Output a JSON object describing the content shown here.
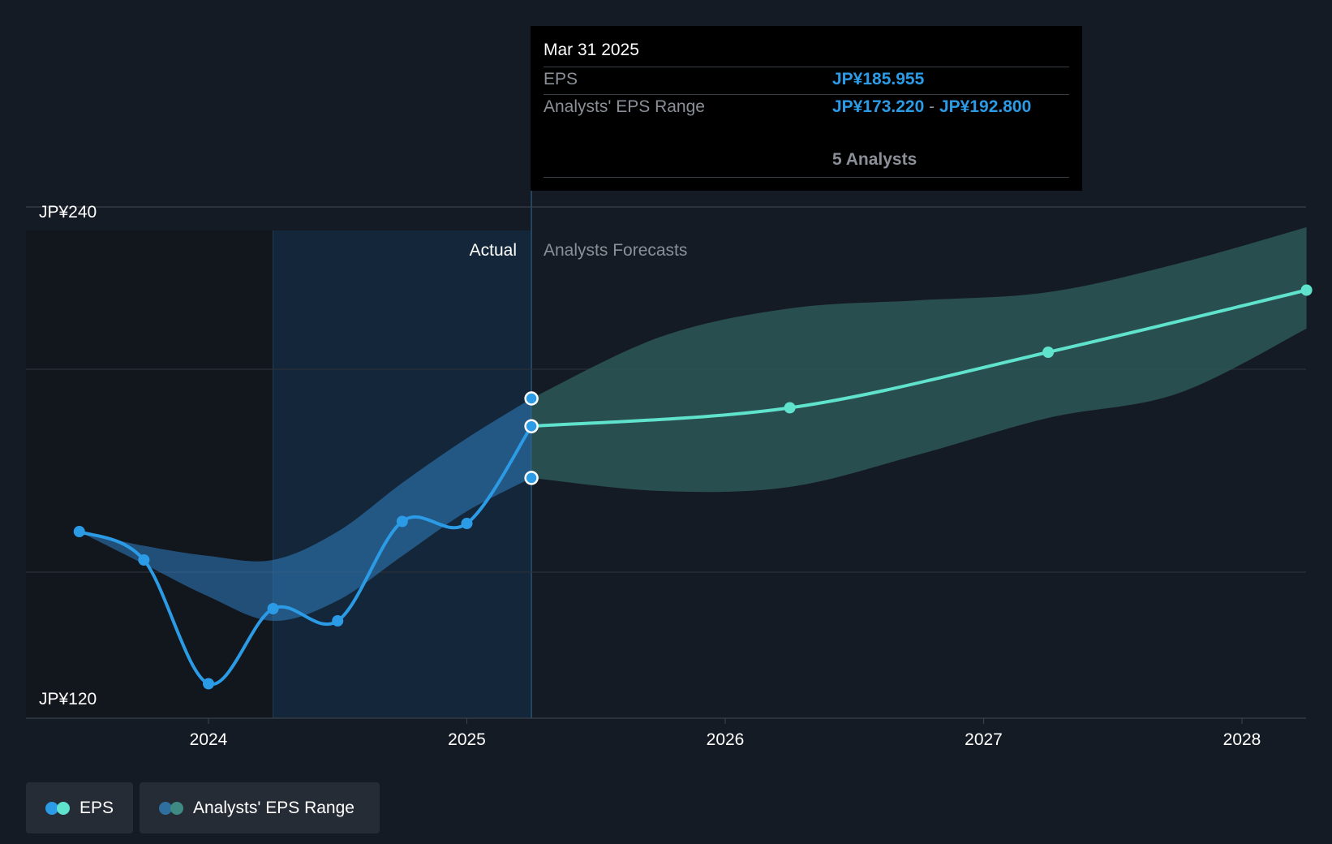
{
  "chart_data": {
    "type": "line",
    "y_axis": {
      "min_label": "JP¥120",
      "max_label": "JP¥240",
      "ylim": [
        114,
        240
      ],
      "unit_prefix": "JP¥"
    },
    "x_axis": {
      "ticks": [
        "2024",
        "2025",
        "2026",
        "2027",
        "2028"
      ],
      "xlim": [
        2023.33,
        2028.25
      ]
    },
    "grid": true,
    "regions": {
      "actual_label": "Actual",
      "forecast_label": "Analysts Forecasts",
      "split_x": 2025.25
    },
    "series": [
      {
        "name": "EPS",
        "color": "#2b9be6",
        "points": [
          {
            "x": 2023.5,
            "y": 160.0
          },
          {
            "x": 2023.75,
            "y": 153.0
          },
          {
            "x": 2024.0,
            "y": 122.5
          },
          {
            "x": 2024.25,
            "y": 141.0
          },
          {
            "x": 2024.5,
            "y": 138.0
          },
          {
            "x": 2024.75,
            "y": 162.5
          },
          {
            "x": 2025.0,
            "y": 162.0
          },
          {
            "x": 2025.25,
            "y": 185.955
          }
        ]
      },
      {
        "name": "EPS forecast",
        "color": "#5fe3cc",
        "points": [
          {
            "x": 2025.25,
            "y": 185.955
          },
          {
            "x": 2026.25,
            "y": 190.5
          },
          {
            "x": 2027.25,
            "y": 204.2
          },
          {
            "x": 2028.25,
            "y": 219.5
          }
        ]
      }
    ],
    "ranges": [
      {
        "name": "Analysts' EPS Range (historical)",
        "color": "#2f7fc1",
        "x": [
          2023.5,
          2023.75,
          2024.0,
          2024.25,
          2024.5,
          2024.75,
          2025.0,
          2025.25
        ],
        "high": [
          160.0,
          156.5,
          154.0,
          153.0,
          160.0,
          172.0,
          183.0,
          192.8
        ],
        "low": [
          160.0,
          152.0,
          144.0,
          138.0,
          143.0,
          154.0,
          165.0,
          173.22
        ]
      },
      {
        "name": "Analysts' EPS Range (forecast)",
        "color": "#2e5b5a",
        "x": [
          2025.25,
          2025.75,
          2026.25,
          2026.75,
          2027.25,
          2027.75,
          2028.25
        ],
        "high": [
          192.8,
          208.0,
          215.0,
          217.0,
          219.0,
          226.0,
          235.0
        ],
        "low": [
          173.22,
          170.0,
          171.0,
          179.0,
          188.0,
          194.0,
          210.0
        ]
      }
    ]
  },
  "tooltip": {
    "date": "Mar 31 2025",
    "eps_label": "EPS",
    "eps_value": "JP¥185.955",
    "range_label": "Analysts' EPS Range",
    "range_low": "JP¥173.220",
    "range_sep": "-",
    "range_high": "JP¥192.800",
    "analysts": "5 Analysts"
  },
  "legend": [
    {
      "label": "EPS",
      "colors": [
        "#2b9be6",
        "#5fe3cc"
      ]
    },
    {
      "label": "Analysts' EPS Range",
      "colors": [
        "#2f6f9f",
        "#3f8a83"
      ]
    }
  ]
}
